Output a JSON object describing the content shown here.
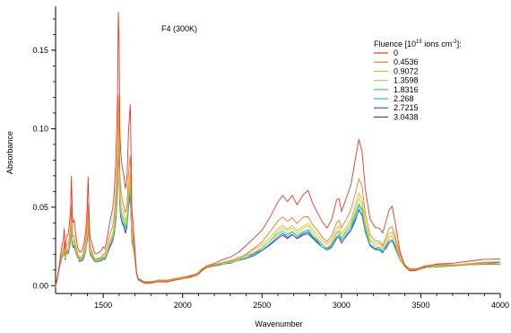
{
  "chart_data": {
    "type": "line",
    "title": "F4 (300K)",
    "xlabel": "Wavenumber",
    "ylabel": "Absorbance",
    "xlim": [
      1200,
      4000
    ],
    "ylim": [
      -0.005,
      0.178
    ],
    "x_ticks": [
      1500,
      2000,
      2500,
      3000,
      3500,
      4000
    ],
    "x_tick_labels": [
      "1500",
      "2000",
      "2500",
      "3000",
      "3500",
      "4000"
    ],
    "y_ticks": [
      0.0,
      0.05,
      0.1,
      0.15
    ],
    "y_tick_labels": [
      "0.00",
      "0.05",
      "0.10",
      "0.15"
    ],
    "grid": false,
    "legend": {
      "title_prefix": "Fluence [10",
      "title_exp1": "15",
      "title_mid": " ions cm",
      "title_exp2": "-2",
      "title_suffix": "]:",
      "placement": "top-right"
    },
    "series": [
      {
        "name": "0",
        "color": "#e8352a",
        "scale": 1.0
      },
      {
        "name": "0.4536",
        "color": "#f07a23",
        "scale": 0.68
      },
      {
        "name": "0.9072",
        "color": "#f2b230",
        "scale": 0.58
      },
      {
        "name": "1.3598",
        "color": "#b5d93a",
        "scale": 0.53
      },
      {
        "name": "1.8316",
        "color": "#3fd46a",
        "scale": 0.5
      },
      {
        "name": "2.268",
        "color": "#2bc0c8",
        "scale": 0.47
      },
      {
        "name": "2.7215",
        "color": "#2f5de0",
        "scale": 0.45
      },
      {
        "name": "3.0438",
        "color": "#6a2fc8",
        "scale": 0.44
      }
    ],
    "reference_curve": {
      "x": [
        1200,
        1210,
        1220,
        1230,
        1240,
        1250,
        1255,
        1260,
        1265,
        1270,
        1280,
        1290,
        1295,
        1300,
        1305,
        1310,
        1318,
        1325,
        1330,
        1340,
        1350,
        1360,
        1370,
        1380,
        1390,
        1400,
        1405,
        1410,
        1415,
        1420,
        1430,
        1440,
        1450,
        1460,
        1470,
        1480,
        1490,
        1500,
        1510,
        1520,
        1530,
        1540,
        1550,
        1560,
        1570,
        1580,
        1590,
        1595,
        1600,
        1605,
        1610,
        1620,
        1630,
        1640,
        1650,
        1660,
        1670,
        1675,
        1680,
        1690,
        1700,
        1710,
        1720,
        1740,
        1760,
        1780,
        1800,
        1850,
        1900,
        1950,
        2000,
        2050,
        2080,
        2100,
        2120,
        2150,
        2200,
        2250,
        2300,
        2350,
        2400,
        2450,
        2500,
        2550,
        2600,
        2630,
        2660,
        2690,
        2720,
        2760,
        2790,
        2820,
        2850,
        2880,
        2910,
        2940,
        2970,
        2985,
        3000,
        3030,
        3060,
        3090,
        3110,
        3130,
        3150,
        3180,
        3210,
        3240,
        3260,
        3280,
        3300,
        3320,
        3340,
        3370,
        3400,
        3430,
        3460,
        3490,
        3520,
        3600,
        3700,
        3800,
        3900,
        4000
      ],
      "values": [
        0.0,
        0.004,
        0.01,
        0.018,
        0.025,
        0.03,
        0.036,
        0.023,
        0.028,
        0.032,
        0.033,
        0.042,
        0.05,
        0.07,
        0.045,
        0.04,
        0.041,
        0.034,
        0.03,
        0.024,
        0.021,
        0.021,
        0.023,
        0.028,
        0.036,
        0.052,
        0.07,
        0.05,
        0.034,
        0.03,
        0.026,
        0.022,
        0.02,
        0.02,
        0.021,
        0.021,
        0.022,
        0.024,
        0.024,
        0.028,
        0.034,
        0.04,
        0.045,
        0.05,
        0.06,
        0.08,
        0.12,
        0.174,
        0.155,
        0.1,
        0.085,
        0.075,
        0.07,
        0.062,
        0.07,
        0.1,
        0.116,
        0.09,
        0.05,
        0.038,
        0.022,
        0.008,
        0.004,
        0.003,
        0.002,
        0.002,
        0.002,
        0.003,
        0.003,
        0.004,
        0.005,
        0.006,
        0.007,
        0.008,
        0.01,
        0.012,
        0.014,
        0.016,
        0.018,
        0.021,
        0.025,
        0.03,
        0.036,
        0.044,
        0.054,
        0.058,
        0.054,
        0.058,
        0.052,
        0.058,
        0.06,
        0.052,
        0.046,
        0.04,
        0.036,
        0.042,
        0.054,
        0.056,
        0.048,
        0.056,
        0.065,
        0.082,
        0.094,
        0.086,
        0.062,
        0.042,
        0.037,
        0.036,
        0.033,
        0.04,
        0.048,
        0.05,
        0.04,
        0.022,
        0.013,
        0.01,
        0.01,
        0.011,
        0.012,
        0.013,
        0.014,
        0.015,
        0.016,
        0.017
      ]
    }
  }
}
